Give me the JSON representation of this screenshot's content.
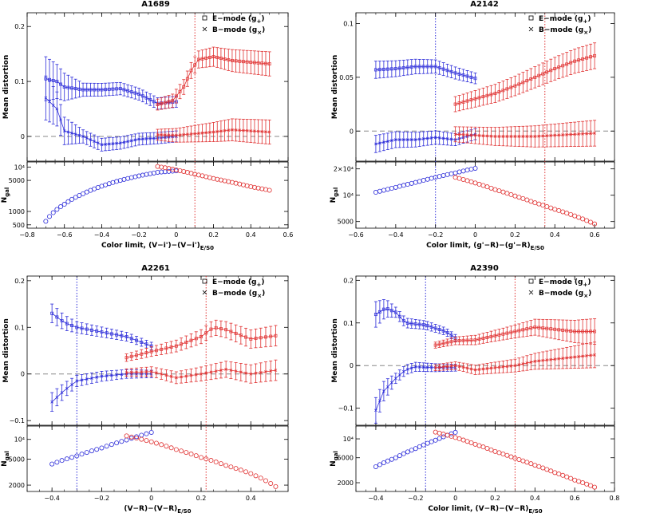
{
  "figure": {
    "colors": {
      "blue": "#2b2bd9",
      "red": "#e03030",
      "axis": "#000000",
      "zero_line": "#888888"
    },
    "ylabel_top": "Mean distortion",
    "ylabel_bottom": "N",
    "ylabel_bottom_sub": "gal",
    "legend": {
      "e_mode": "E−mode (g",
      "e_sub": "+",
      "b_mode": "B−mode (g",
      "b_sub": "×",
      "close": ")"
    }
  },
  "chart_data": [
    {
      "type": "scatter",
      "title": "A1689",
      "xlabel_main": "Color limit, (V−i')−(V−i')",
      "xlabel_sub": "E/S0",
      "xlim": [
        -0.8,
        0.6
      ],
      "xticks": [
        -0.8,
        -0.6,
        -0.4,
        -0.2,
        0,
        0.2,
        0.4,
        0.6
      ],
      "top": {
        "ylim": [
          -0.045,
          0.225
        ],
        "yticks": [
          0,
          0.1,
          0.2
        ],
        "yticklabels": [
          "0",
          "0.1",
          "0.2"
        ]
      },
      "bottom": {
        "scale": "log",
        "ylim": [
          420,
          13000
        ],
        "yticks": [
          500,
          1000,
          5000,
          10000
        ],
        "yticklabels": [
          "500",
          "1000",
          "5000",
          "10⁴"
        ]
      },
      "vlines": [
        {
          "x": 0.1,
          "color": "red"
        }
      ],
      "x_blue": [
        -0.7,
        0.0
      ],
      "x_red": [
        -0.1,
        0.5
      ],
      "step": 0.02,
      "ngal_blue": [
        [
          -0.7,
          600
        ],
        [
          -0.6,
          1450
        ],
        [
          -0.5,
          2500
        ],
        [
          -0.4,
          3700
        ],
        [
          -0.3,
          5000
        ],
        [
          -0.2,
          6300
        ],
        [
          -0.1,
          7600
        ],
        [
          0.0,
          8200
        ]
      ],
      "ngal_red": [
        [
          -0.1,
          10300
        ],
        [
          0.0,
          8600
        ],
        [
          0.1,
          6900
        ],
        [
          0.2,
          5500
        ],
        [
          0.3,
          4500
        ],
        [
          0.4,
          3600
        ],
        [
          0.5,
          3000
        ]
      ],
      "e_blue": [
        [
          -0.7,
          0.105
        ],
        [
          -0.64,
          0.1
        ],
        [
          -0.6,
          0.09
        ],
        [
          -0.5,
          0.085
        ],
        [
          -0.4,
          0.085
        ],
        [
          -0.3,
          0.087
        ],
        [
          -0.2,
          0.077
        ],
        [
          -0.1,
          0.06
        ],
        [
          0.0,
          0.063
        ]
      ],
      "b_blue": [
        [
          -0.7,
          0.07
        ],
        [
          -0.64,
          0.05
        ],
        [
          -0.6,
          0.01
        ],
        [
          -0.5,
          0.0
        ],
        [
          -0.4,
          -0.015
        ],
        [
          -0.3,
          -0.012
        ],
        [
          -0.2,
          -0.005
        ],
        [
          -0.1,
          -0.003
        ],
        [
          0.0,
          0.0
        ]
      ],
      "e_red": [
        [
          -0.1,
          0.058
        ],
        [
          -0.02,
          0.065
        ],
        [
          0.04,
          0.09
        ],
        [
          0.08,
          0.12
        ],
        [
          0.12,
          0.14
        ],
        [
          0.2,
          0.145
        ],
        [
          0.3,
          0.138
        ],
        [
          0.4,
          0.135
        ],
        [
          0.5,
          0.132
        ]
      ],
      "b_red": [
        [
          -0.1,
          0.003
        ],
        [
          0.0,
          0.002
        ],
        [
          0.1,
          0.005
        ],
        [
          0.2,
          0.008
        ],
        [
          0.3,
          0.012
        ],
        [
          0.4,
          0.01
        ],
        [
          0.5,
          0.008
        ]
      ],
      "err_blue": [
        [
          -0.7,
          0.04
        ],
        [
          -0.6,
          0.025
        ],
        [
          -0.5,
          0.012
        ],
        [
          0.0,
          0.01
        ]
      ],
      "err_red": [
        [
          -0.1,
          0.01
        ],
        [
          0.1,
          0.015
        ],
        [
          0.3,
          0.02
        ],
        [
          0.5,
          0.022
        ]
      ]
    },
    {
      "type": "scatter",
      "title": "A2142",
      "xlabel_main": "Color limit, (g'−R)−(g'−R)",
      "xlabel_sub": "E/S0",
      "xlim": [
        -0.6,
        0.7
      ],
      "xticks": [
        -0.6,
        -0.4,
        -0.2,
        0,
        0.2,
        0.4,
        0.6
      ],
      "top": {
        "ylim": [
          -0.028,
          0.11
        ],
        "yticks": [
          0,
          0.05,
          0.1
        ],
        "yticklabels": [
          "0",
          "0.05",
          "0.1"
        ]
      },
      "bottom": {
        "scale": "log",
        "ylim": [
          4200,
          24000
        ],
        "yticks": [
          5000,
          10000,
          20000
        ],
        "yticklabels": [
          "5000",
          "10⁴",
          "2×10⁴"
        ]
      },
      "vlines": [
        {
          "x": -0.2,
          "color": "blue"
        },
        {
          "x": 0.35,
          "color": "red"
        }
      ],
      "x_blue": [
        -0.5,
        0.0
      ],
      "x_red": [
        -0.1,
        0.6
      ],
      "step": 0.02,
      "ngal_blue": [
        [
          -0.5,
          10800
        ],
        [
          -0.4,
          12300
        ],
        [
          -0.3,
          14000
        ],
        [
          -0.2,
          16000
        ],
        [
          -0.1,
          18000
        ],
        [
          0.0,
          20300
        ]
      ],
      "ngal_red": [
        [
          -0.1,
          16000
        ],
        [
          0.0,
          13800
        ],
        [
          0.1,
          11600
        ],
        [
          0.2,
          9800
        ],
        [
          0.3,
          8200
        ],
        [
          0.4,
          6900
        ],
        [
          0.5,
          5800
        ],
        [
          0.6,
          4700
        ]
      ],
      "e_blue": [
        [
          -0.5,
          0.057
        ],
        [
          -0.4,
          0.058
        ],
        [
          -0.3,
          0.06
        ],
        [
          -0.2,
          0.06
        ],
        [
          -0.1,
          0.054
        ],
        [
          0.0,
          0.049
        ]
      ],
      "b_blue": [
        [
          -0.5,
          -0.012
        ],
        [
          -0.4,
          -0.008
        ],
        [
          -0.3,
          -0.008
        ],
        [
          -0.2,
          -0.006
        ],
        [
          -0.1,
          -0.008
        ],
        [
          0.0,
          -0.003
        ]
      ],
      "e_red": [
        [
          -0.1,
          0.025
        ],
        [
          0.0,
          0.03
        ],
        [
          0.1,
          0.035
        ],
        [
          0.2,
          0.042
        ],
        [
          0.3,
          0.05
        ],
        [
          0.4,
          0.058
        ],
        [
          0.5,
          0.065
        ],
        [
          0.6,
          0.07
        ]
      ],
      "b_red": [
        [
          -0.1,
          -0.003
        ],
        [
          0.1,
          -0.005
        ],
        [
          0.3,
          -0.005
        ],
        [
          0.5,
          -0.003
        ],
        [
          0.6,
          -0.002
        ]
      ],
      "err_blue": [
        [
          -0.5,
          0.008
        ],
        [
          0.0,
          0.005
        ]
      ],
      "err_red": [
        [
          -0.1,
          0.007
        ],
        [
          0.6,
          0.012
        ]
      ]
    },
    {
      "type": "scatter",
      "title": "A2261",
      "xlabel_main": "(V−R)−(V−R)",
      "xlabel_sub": "E/S0",
      "xlim": [
        -0.5,
        0.55
      ],
      "xticks": [
        -0.4,
        -0.2,
        0,
        0.2,
        0.4
      ],
      "top": {
        "ylim": [
          -0.11,
          0.21
        ],
        "yticks": [
          -0.1,
          0,
          0.1,
          0.2
        ],
        "yticklabels": [
          "−0.1",
          "0",
          "0.1",
          "0.2"
        ]
      },
      "bottom": {
        "scale": "log",
        "ylim": [
          1600,
          16000
        ],
        "yticks": [
          2000,
          5000,
          10000
        ],
        "yticklabels": [
          "2000",
          "5000",
          "10⁴"
        ]
      },
      "vlines": [
        {
          "x": -0.3,
          "color": "blue"
        },
        {
          "x": 0.22,
          "color": "red"
        }
      ],
      "x_blue": [
        -0.4,
        0.0
      ],
      "x_red": [
        -0.1,
        0.5
      ],
      "step": 0.02,
      "ngal_blue": [
        [
          -0.4,
          4200
        ],
        [
          -0.3,
          5600
        ],
        [
          -0.2,
          7400
        ],
        [
          -0.1,
          9800
        ],
        [
          0.0,
          12800
        ]
      ],
      "ngal_red": [
        [
          -0.1,
          11300
        ],
        [
          0.0,
          9200
        ],
        [
          0.1,
          7000
        ],
        [
          0.2,
          5300
        ],
        [
          0.3,
          4000
        ],
        [
          0.4,
          3000
        ],
        [
          0.5,
          1900
        ]
      ],
      "e_blue": [
        [
          -0.4,
          0.13
        ],
        [
          -0.35,
          0.11
        ],
        [
          -0.3,
          0.1
        ],
        [
          -0.2,
          0.09
        ],
        [
          -0.1,
          0.08
        ],
        [
          0.0,
          0.06
        ]
      ],
      "b_blue": [
        [
          -0.4,
          -0.06
        ],
        [
          -0.35,
          -0.035
        ],
        [
          -0.3,
          -0.015
        ],
        [
          -0.2,
          -0.005
        ],
        [
          -0.1,
          0.0
        ],
        [
          0.0,
          0.0
        ]
      ],
      "e_red": [
        [
          -0.1,
          0.035
        ],
        [
          0.0,
          0.048
        ],
        [
          0.1,
          0.06
        ],
        [
          0.2,
          0.08
        ],
        [
          0.25,
          0.1
        ],
        [
          0.3,
          0.095
        ],
        [
          0.4,
          0.075
        ],
        [
          0.5,
          0.082
        ]
      ],
      "b_red": [
        [
          -0.1,
          0.003
        ],
        [
          0.0,
          0.005
        ],
        [
          0.1,
          -0.008
        ],
        [
          0.2,
          0.0
        ],
        [
          0.3,
          0.01
        ],
        [
          0.4,
          0.0
        ],
        [
          0.5,
          0.008
        ]
      ],
      "err_blue": [
        [
          -0.4,
          0.02
        ],
        [
          -0.3,
          0.012
        ],
        [
          0.0,
          0.008
        ]
      ],
      "err_red": [
        [
          -0.1,
          0.008
        ],
        [
          0.2,
          0.015
        ],
        [
          0.5,
          0.022
        ]
      ]
    },
    {
      "type": "scatter",
      "title": "A2390",
      "xlabel_main": "Color limit, (V−R)−(V−R)",
      "xlabel_sub": "E/S0",
      "xlim": [
        -0.5,
        0.8
      ],
      "xticks": [
        -0.4,
        -0.2,
        0,
        0.2,
        0.4,
        0.6,
        0.8
      ],
      "top": {
        "ylim": [
          -0.14,
          0.21
        ],
        "yticks": [
          -0.1,
          0,
          0.1,
          0.2
        ],
        "yticklabels": [
          "−0.1",
          "0",
          "0.1",
          "0.2"
        ]
      },
      "bottom": {
        "scale": "log",
        "ylim": [
          1450,
          16000
        ],
        "yticks": [
          2000,
          5000,
          10000
        ],
        "yticklabels": [
          "2000",
          "5000",
          "10⁴"
        ]
      },
      "vlines": [
        {
          "x": -0.15,
          "color": "blue"
        },
        {
          "x": 0.3,
          "color": "red"
        }
      ],
      "x_blue": [
        -0.4,
        0.0
      ],
      "x_red": [
        -0.1,
        0.7
      ],
      "step": 0.02,
      "ngal_blue": [
        [
          -0.4,
          3600
        ],
        [
          -0.3,
          5000
        ],
        [
          -0.2,
          7000
        ],
        [
          -0.1,
          9500
        ],
        [
          0.0,
          12700
        ]
      ],
      "ngal_red": [
        [
          -0.1,
          12800
        ],
        [
          0.0,
          10500
        ],
        [
          0.1,
          8200
        ],
        [
          0.2,
          6300
        ],
        [
          0.3,
          4900
        ],
        [
          0.4,
          3800
        ],
        [
          0.5,
          2900
        ],
        [
          0.6,
          2200
        ],
        [
          0.7,
          1700
        ]
      ],
      "e_blue": [
        [
          -0.4,
          0.12
        ],
        [
          -0.35,
          0.135
        ],
        [
          -0.3,
          0.125
        ],
        [
          -0.25,
          0.1
        ],
        [
          -0.15,
          0.095
        ],
        [
          -0.05,
          0.08
        ],
        [
          0.0,
          0.065
        ]
      ],
      "b_blue": [
        [
          -0.4,
          -0.105
        ],
        [
          -0.36,
          -0.06
        ],
        [
          -0.3,
          -0.03
        ],
        [
          -0.25,
          -0.01
        ],
        [
          -0.2,
          -0.003
        ],
        [
          -0.1,
          -0.005
        ],
        [
          0.0,
          -0.005
        ]
      ],
      "e_red": [
        [
          -0.1,
          0.048
        ],
        [
          0.0,
          0.058
        ],
        [
          0.1,
          0.06
        ],
        [
          0.2,
          0.07
        ],
        [
          0.3,
          0.08
        ],
        [
          0.4,
          0.09
        ],
        [
          0.5,
          0.085
        ],
        [
          0.6,
          0.08
        ],
        [
          0.7,
          0.08
        ]
      ],
      "b_red": [
        [
          -0.1,
          -0.005
        ],
        [
          0.0,
          0.0
        ],
        [
          0.1,
          -0.01
        ],
        [
          0.2,
          -0.005
        ],
        [
          0.3,
          0.0
        ],
        [
          0.4,
          0.01
        ],
        [
          0.5,
          0.015
        ],
        [
          0.6,
          0.02
        ],
        [
          0.7,
          0.025
        ]
      ],
      "err_blue": [
        [
          -0.4,
          0.03
        ],
        [
          -0.3,
          0.012
        ],
        [
          0.0,
          0.008
        ]
      ],
      "err_red": [
        [
          -0.1,
          0.007
        ],
        [
          0.3,
          0.015
        ],
        [
          0.7,
          0.03
        ]
      ]
    }
  ]
}
